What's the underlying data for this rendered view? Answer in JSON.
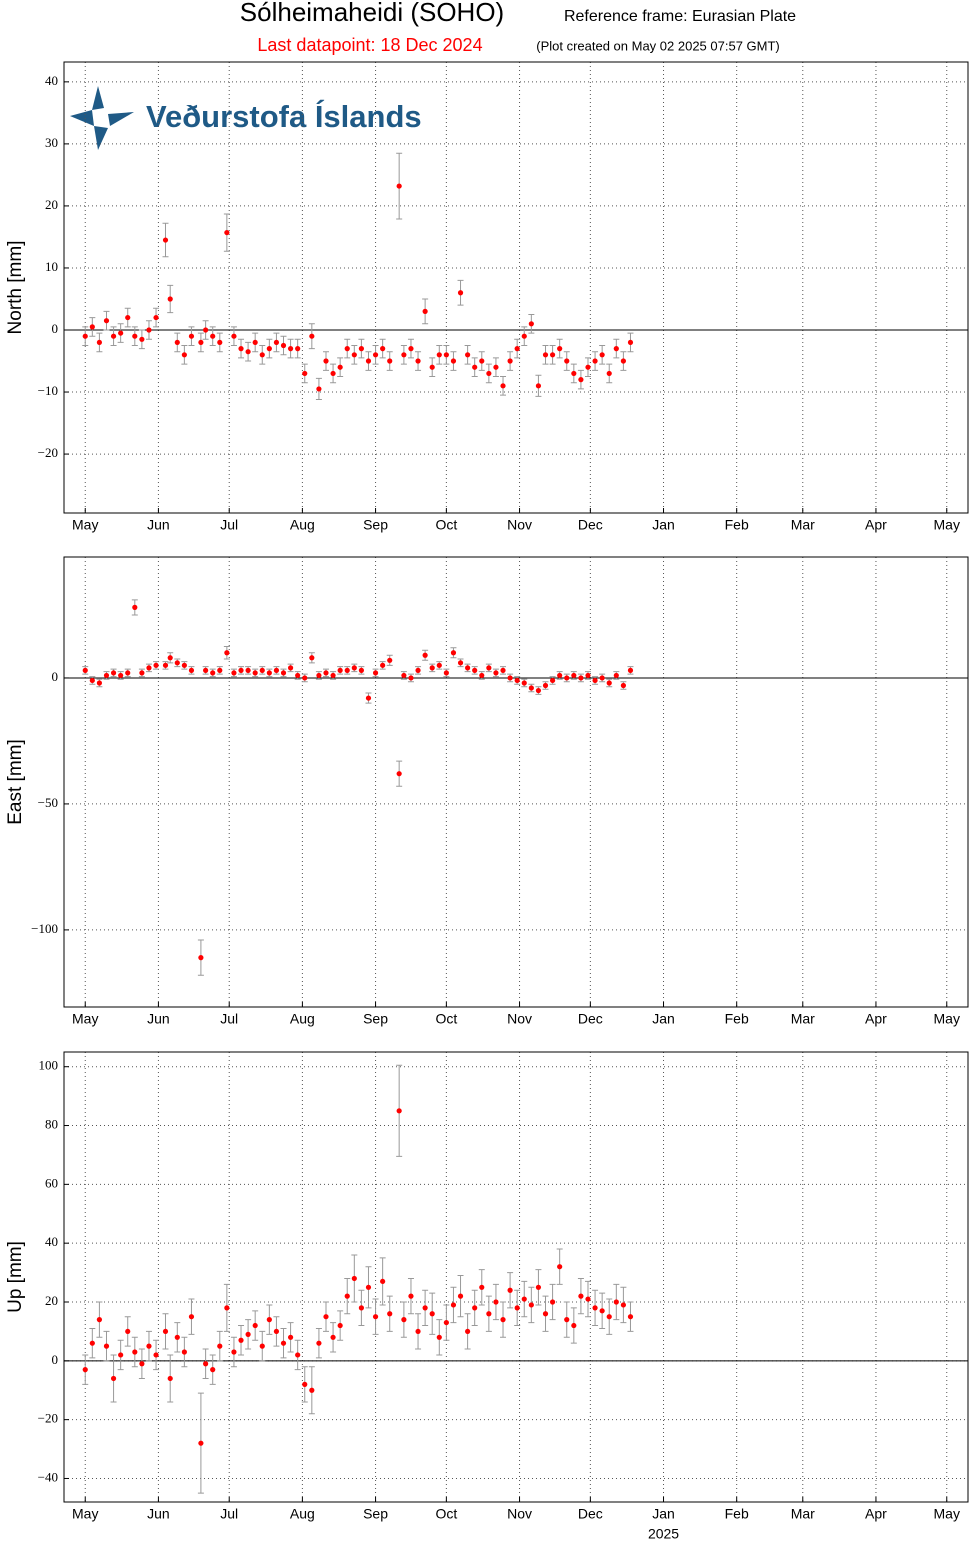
{
  "header": {
    "title": "Sólheimaheidi (SOHO)",
    "frame": "Reference frame: Eurasian Plate",
    "last": "Last datapoint: 18 Dec 2024",
    "created": "(Plot created on May 02 2025 07:57 GMT)",
    "logo": "Veðurstofa Íslands"
  },
  "chart_data": [
    {
      "type": "scatter",
      "ylabel": "North [mm]",
      "grid": true,
      "zero_line": true,
      "xlim": [
        -9,
        374
      ],
      "ylim": [
        -29.5,
        43.2
      ],
      "xticks": [
        {
          "value": 0,
          "label": "May"
        },
        {
          "value": 31,
          "label": "Jun"
        },
        {
          "value": 61,
          "label": "Jul"
        },
        {
          "value": 92,
          "label": "Aug"
        },
        {
          "value": 123,
          "label": "Sep"
        },
        {
          "value": 153,
          "label": "Oct"
        },
        {
          "value": 184,
          "label": "Nov"
        },
        {
          "value": 214,
          "label": "Dec"
        },
        {
          "value": 245,
          "label": "Jan"
        },
        {
          "value": 276,
          "label": "Feb"
        },
        {
          "value": 304,
          "label": "Mar"
        },
        {
          "value": 335,
          "label": "Apr"
        },
        {
          "value": 365,
          "label": "May"
        }
      ],
      "yticks": [
        {
          "value": -20,
          "label": "−20"
        },
        {
          "value": -10,
          "label": "−10"
        },
        0,
        10,
        20,
        30,
        40
      ],
      "x": [
        0,
        3,
        6,
        9,
        12,
        15,
        18,
        21,
        24,
        27,
        30,
        34,
        36,
        39,
        42,
        45,
        49,
        51,
        54,
        57,
        60,
        63,
        66,
        69,
        72,
        75,
        78,
        81,
        84,
        87,
        90,
        93,
        96,
        99,
        102,
        105,
        108,
        111,
        114,
        117,
        120,
        123,
        126,
        129,
        133,
        135,
        138,
        141,
        144,
        147,
        150,
        153,
        156,
        159,
        162,
        165,
        168,
        171,
        174,
        177,
        180,
        183,
        186,
        189,
        192,
        195,
        198,
        201,
        204,
        207,
        210,
        213,
        216,
        219,
        222,
        225,
        228,
        231
      ],
      "series": [
        {
          "color": "#ff0000",
          "values": [
            -1,
            0.5,
            -2,
            1.5,
            -1,
            -0.5,
            2,
            -1,
            -1.5,
            0,
            2,
            14.5,
            5,
            -2,
            -4,
            -1,
            -2,
            0,
            -1,
            -2,
            15.7,
            -1,
            -3,
            -3.5,
            -2,
            -4,
            -3,
            -2,
            -2.5,
            -3,
            -3,
            -7,
            -1,
            -9.5,
            -5,
            -7,
            -6,
            -3,
            -4,
            -3,
            -5,
            -4,
            -3,
            -5,
            23.2,
            -4,
            -3,
            -5,
            3,
            -6,
            -4,
            -4,
            -5,
            6,
            -4,
            -6,
            -5,
            -7,
            -6,
            -9,
            -5,
            -3,
            -1,
            1,
            -9,
            -4,
            -4,
            -3,
            -5,
            -7,
            -8,
            -6,
            -5,
            -4,
            -7,
            -3,
            -5,
            -2
          ],
          "errors": [
            1.5,
            1.5,
            1.5,
            1.5,
            1.5,
            1.5,
            1.5,
            1.5,
            1.5,
            1.5,
            1.5,
            2.7,
            2.2,
            1.5,
            1.5,
            1.5,
            1.5,
            1.5,
            1.5,
            1.5,
            3,
            1.5,
            1.5,
            1.5,
            1.5,
            1.5,
            1.5,
            1.5,
            1.5,
            1.5,
            1.5,
            1.5,
            2,
            1.7,
            1.5,
            1.5,
            1.5,
            1.5,
            1.5,
            1.5,
            1.5,
            1.5,
            1.5,
            1.5,
            5.3,
            1.5,
            1.5,
            1.5,
            2,
            1.5,
            1.5,
            1.5,
            1.5,
            2,
            1.5,
            1.5,
            1.5,
            1.5,
            1.5,
            1.5,
            1.5,
            1.5,
            1.5,
            1.5,
            1.7,
            1.5,
            1.5,
            1.5,
            1.5,
            1.5,
            1.5,
            1.5,
            1.5,
            1.5,
            1.5,
            1.5,
            1.5,
            1.5
          ]
        }
      ]
    },
    {
      "type": "scatter",
      "ylabel": "East [mm]",
      "grid": true,
      "zero_line": true,
      "xlim": [
        -9,
        374
      ],
      "ylim": [
        -130.6,
        48
      ],
      "xticks": [
        {
          "value": 0,
          "label": "May"
        },
        {
          "value": 31,
          "label": "Jun"
        },
        {
          "value": 61,
          "label": "Jul"
        },
        {
          "value": 92,
          "label": "Aug"
        },
        {
          "value": 123,
          "label": "Sep"
        },
        {
          "value": 153,
          "label": "Oct"
        },
        {
          "value": 184,
          "label": "Nov"
        },
        {
          "value": 214,
          "label": "Dec"
        },
        {
          "value": 245,
          "label": "Jan"
        },
        {
          "value": 276,
          "label": "Feb"
        },
        {
          "value": 304,
          "label": "Mar"
        },
        {
          "value": 335,
          "label": "Apr"
        },
        {
          "value": 365,
          "label": "May"
        }
      ],
      "yticks": [
        {
          "value": -100,
          "label": "−100"
        },
        {
          "value": -50,
          "label": "−50"
        },
        0
      ],
      "x": [
        0,
        3,
        6,
        9,
        12,
        15,
        18,
        21,
        24,
        27,
        30,
        34,
        36,
        39,
        42,
        45,
        49,
        51,
        54,
        57,
        60,
        63,
        66,
        69,
        72,
        75,
        78,
        81,
        84,
        87,
        90,
        93,
        96,
        99,
        102,
        105,
        108,
        111,
        114,
        117,
        120,
        123,
        126,
        129,
        133,
        135,
        138,
        141,
        144,
        147,
        150,
        153,
        156,
        159,
        162,
        165,
        168,
        171,
        174,
        177,
        180,
        183,
        186,
        189,
        192,
        195,
        198,
        201,
        204,
        207,
        210,
        213,
        216,
        219,
        222,
        225,
        228,
        231
      ],
      "series": [
        {
          "color": "#ff0000",
          "values": [
            3,
            -1,
            -2,
            1,
            2,
            1,
            2,
            28,
            2,
            4,
            5,
            5,
            8,
            6,
            5,
            3,
            -111,
            3,
            2,
            3,
            10,
            2,
            3,
            3,
            2,
            3,
            2,
            3,
            2,
            4,
            1,
            0,
            8,
            1,
            2,
            1,
            3,
            3,
            4,
            3,
            -8,
            2,
            5,
            7,
            -38,
            1,
            0,
            3,
            9,
            4,
            5,
            2,
            10,
            6,
            4,
            3,
            1,
            4,
            2,
            3,
            0,
            -1,
            -2,
            -4,
            -5,
            -3,
            -1,
            1,
            0,
            1,
            0,
            1,
            -1,
            0,
            -2,
            1,
            -3,
            3
          ],
          "errors": [
            1.5,
            1.5,
            1.5,
            1.5,
            1.5,
            1.5,
            1.5,
            3,
            1.5,
            1.5,
            1.5,
            1.5,
            2,
            1.5,
            1.5,
            1.5,
            7,
            1.5,
            1.5,
            1.5,
            2.5,
            1.5,
            1.5,
            1.5,
            1.5,
            1.5,
            1.5,
            1.5,
            1.5,
            1.5,
            1.5,
            1.5,
            2,
            1.5,
            1.5,
            1.5,
            1.5,
            1.5,
            1.5,
            1.5,
            2,
            1.5,
            1.5,
            2,
            5,
            1.5,
            1.5,
            1.5,
            2,
            1.5,
            1.5,
            1.5,
            2,
            1.5,
            1.5,
            1.5,
            1.5,
            1.5,
            1.5,
            1.5,
            1.5,
            1.5,
            1.5,
            1.5,
            1.5,
            1.5,
            1.5,
            1.5,
            1.5,
            1.5,
            1.5,
            1.5,
            1.5,
            1.5,
            1.5,
            1.5,
            1.5,
            1.5
          ]
        }
      ]
    },
    {
      "type": "scatter",
      "ylabel": "Up [mm]",
      "grid": true,
      "zero_line": true,
      "year_label": "2025",
      "xlim": [
        -9,
        374
      ],
      "ylim": [
        -48,
        105
      ],
      "xticks": [
        {
          "value": 0,
          "label": "May"
        },
        {
          "value": 31,
          "label": "Jun"
        },
        {
          "value": 61,
          "label": "Jul"
        },
        {
          "value": 92,
          "label": "Aug"
        },
        {
          "value": 123,
          "label": "Sep"
        },
        {
          "value": 153,
          "label": "Oct"
        },
        {
          "value": 184,
          "label": "Nov"
        },
        {
          "value": 214,
          "label": "Dec"
        },
        {
          "value": 245,
          "label": "Jan"
        },
        {
          "value": 276,
          "label": "Feb"
        },
        {
          "value": 304,
          "label": "Mar"
        },
        {
          "value": 335,
          "label": "Apr"
        },
        {
          "value": 365,
          "label": "May"
        }
      ],
      "yticks": [
        {
          "value": -40,
          "label": "−40"
        },
        {
          "value": -20,
          "label": "−20"
        },
        0,
        20,
        40,
        60,
        80,
        100
      ],
      "x": [
        0,
        3,
        6,
        9,
        12,
        15,
        18,
        21,
        24,
        27,
        30,
        34,
        36,
        39,
        42,
        45,
        49,
        51,
        54,
        57,
        60,
        63,
        66,
        69,
        72,
        75,
        78,
        81,
        84,
        87,
        90,
        93,
        96,
        99,
        102,
        105,
        108,
        111,
        114,
        117,
        120,
        123,
        126,
        129,
        133,
        135,
        138,
        141,
        144,
        147,
        150,
        153,
        156,
        159,
        162,
        165,
        168,
        171,
        174,
        177,
        180,
        183,
        186,
        189,
        192,
        195,
        198,
        201,
        204,
        207,
        210,
        213,
        216,
        219,
        222,
        225,
        228,
        231
      ],
      "series": [
        {
          "color": "#ff0000",
          "values": [
            -3,
            6,
            14,
            5,
            -6,
            2,
            10,
            3,
            -1,
            5,
            2,
            10,
            -6,
            8,
            3,
            15,
            -28,
            -1,
            -3,
            5,
            18,
            3,
            7,
            9,
            12,
            5,
            14,
            10,
            6,
            8,
            2,
            -8,
            -10,
            6,
            15,
            8,
            12,
            22,
            28,
            18,
            25,
            15,
            27,
            16,
            85,
            14,
            22,
            10,
            18,
            16,
            8,
            13,
            19,
            22,
            10,
            18,
            25,
            16,
            20,
            14,
            24,
            18,
            21,
            19,
            25,
            16,
            20,
            32,
            14,
            12,
            22,
            21,
            18,
            17,
            15,
            20,
            19,
            15
          ],
          "errors": [
            5,
            5,
            6,
            5,
            8,
            5,
            5,
            5,
            5,
            5,
            5,
            6,
            8,
            5,
            5,
            6,
            17,
            5,
            5,
            5,
            8,
            5,
            5,
            5,
            5,
            5,
            5,
            5,
            5,
            5,
            5,
            6,
            8,
            5,
            5,
            5,
            5,
            6,
            8,
            6,
            7,
            6,
            8,
            6,
            15.5,
            6,
            6,
            6,
            6,
            7,
            6,
            6,
            6,
            7,
            6,
            6,
            6,
            6,
            6,
            6,
            6,
            6,
            6,
            6,
            6,
            6,
            6,
            6,
            6,
            6,
            6,
            6,
            6,
            6,
            6,
            6,
            6,
            5
          ]
        }
      ]
    }
  ]
}
